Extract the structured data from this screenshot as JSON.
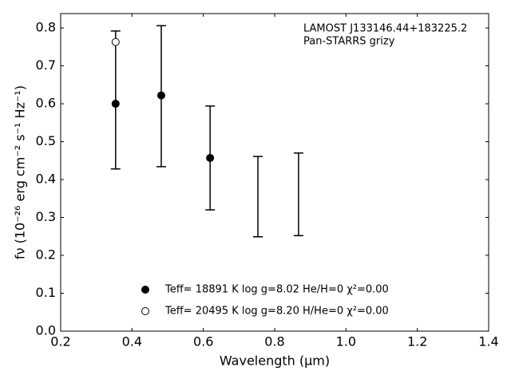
{
  "chart_data": {
    "type": "errorbar",
    "xlabel": "Wavelength (μm)",
    "ylabel": "fν (10⁻²⁶ erg cm⁻² s⁻¹ Hz⁻¹)",
    "annotations": [
      "LAMOST J133146.44+183225.2",
      "Pan-STARRS grizy"
    ],
    "xlim": [
      0.2,
      1.4
    ],
    "xticks": [
      0.2,
      0.4,
      0.6,
      0.8,
      {
        "value": 1,
        "label": "1.0"
      },
      1.2,
      1.4
    ],
    "ylim": [
      0,
      0.838
    ],
    "yticks": [
      {
        "value": 0,
        "label": "0.0"
      },
      0.1,
      0.2,
      0.3,
      0.4,
      0.5,
      0.6,
      0.7,
      0.8
    ],
    "error_bars": {
      "color": "#000000",
      "x": [
        0.354,
        0.482,
        0.619,
        0.753,
        0.867
      ],
      "values": [
        0.61,
        0.62,
        0.457,
        0.355,
        0.361
      ],
      "errors": [
        0.182,
        0.186,
        0.137,
        0.106,
        0.109
      ]
    },
    "series": [
      {
        "name": "Teff= 18891 K  log g=8.02  He/H=0  χ²=0.00",
        "color": "#000000",
        "marker_fill": "#000000",
        "x": [
          0.354,
          0.482,
          0.619
        ],
        "values": [
          0.6,
          0.622,
          0.457
        ]
      },
      {
        "name": "Teff= 20495 K  log g=8.20  H/He=0  χ²=0.00",
        "color": "#000000",
        "marker_fill": "#ffffff",
        "x": [
          0.354
        ],
        "values": [
          0.763
        ]
      }
    ]
  }
}
